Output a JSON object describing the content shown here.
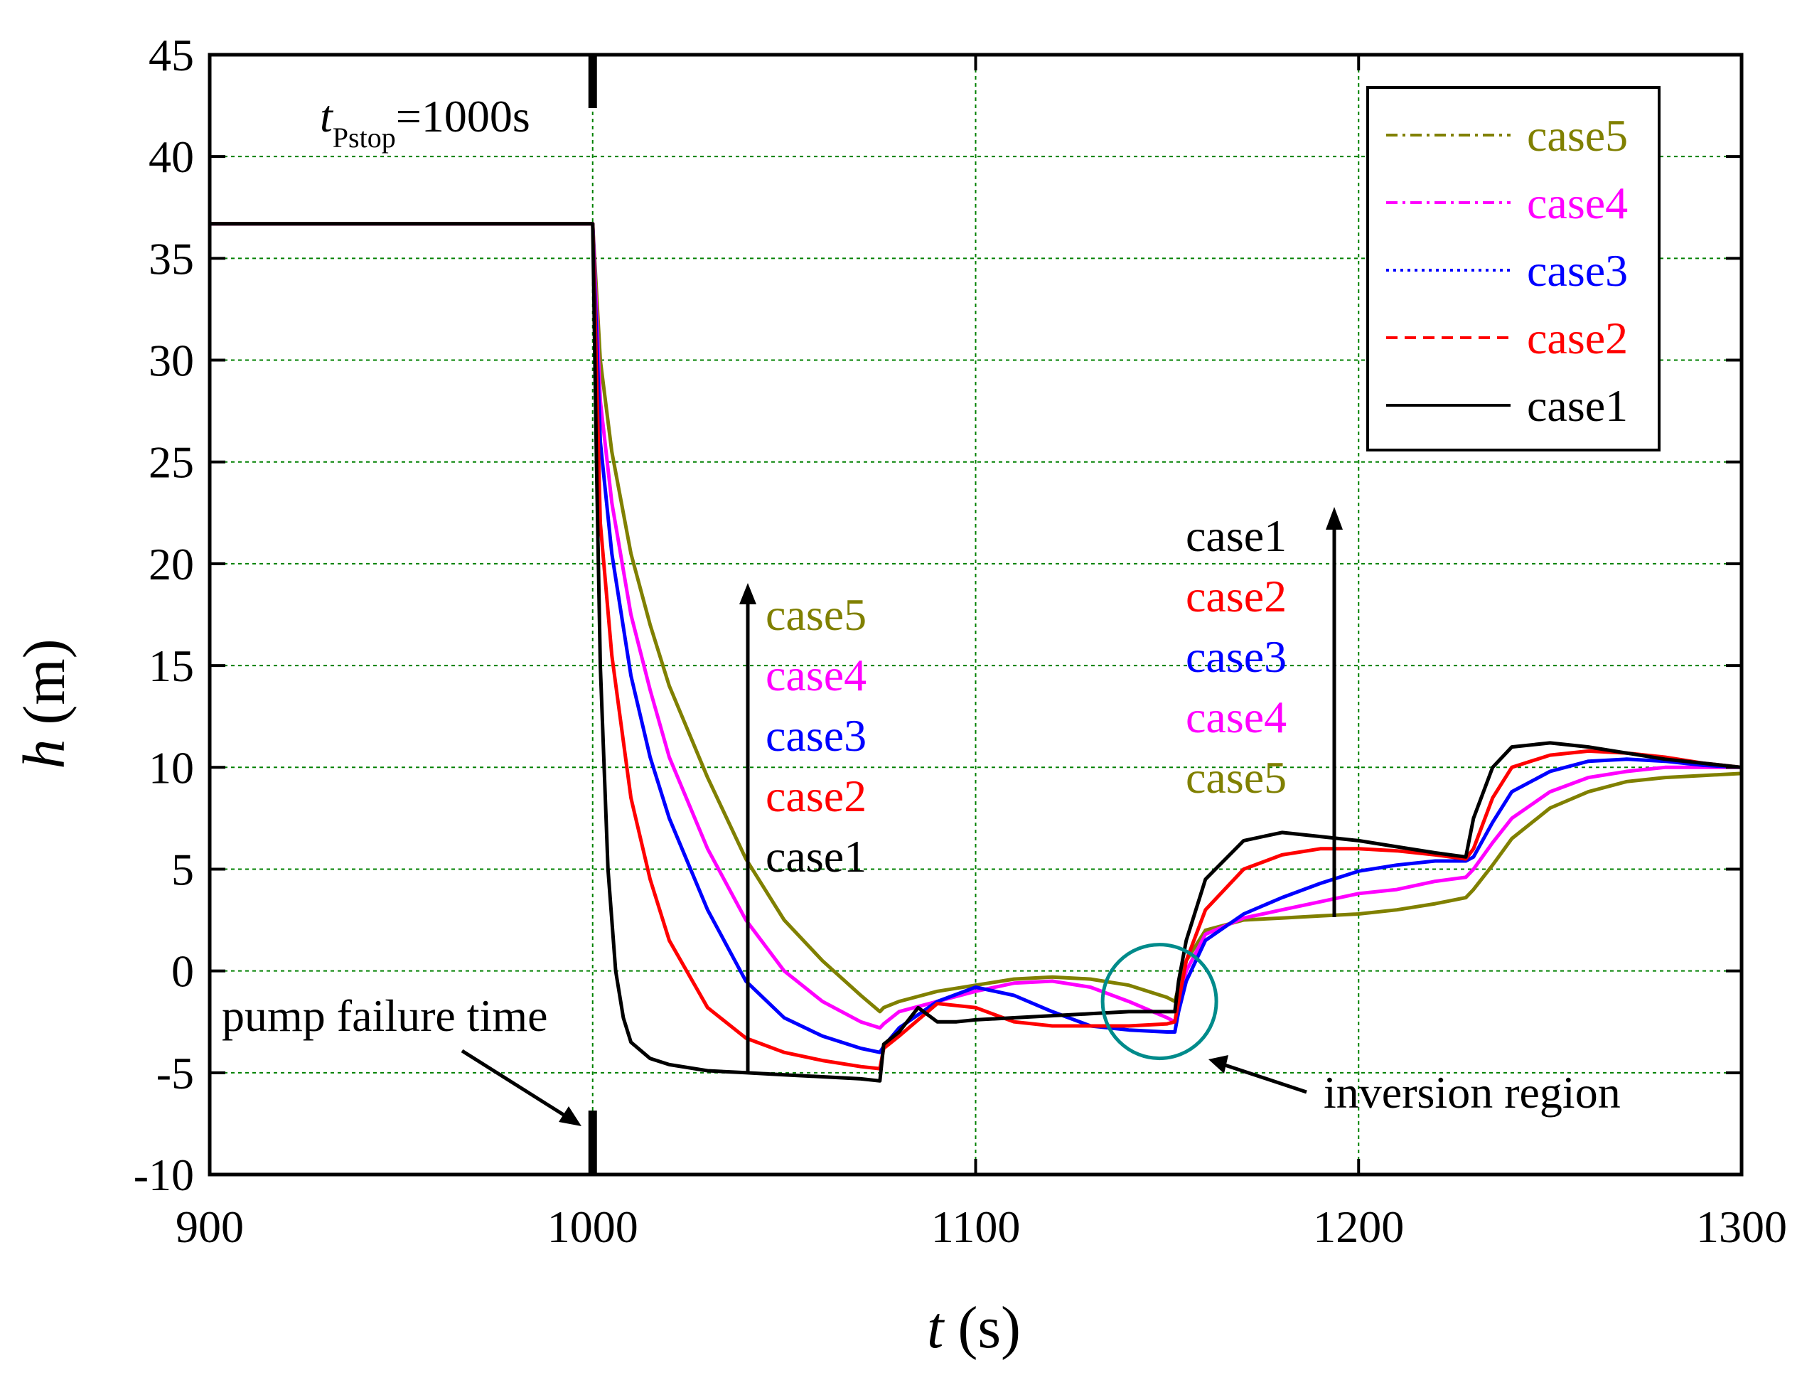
{
  "chart_data": {
    "type": "line",
    "title": "",
    "xlabel": {
      "var": "t",
      "unit": "(s)"
    },
    "ylabel": {
      "var": "h",
      "unit": "(m)"
    },
    "xlim": [
      900,
      1300
    ],
    "ylim": [
      -10,
      45
    ],
    "xticks": [
      900,
      1000,
      1100,
      1200,
      1300
    ],
    "xtick_labels": [
      "900",
      "1000",
      "1100",
      "1200",
      "1300"
    ],
    "yticks": [
      -10,
      -5,
      0,
      5,
      10,
      15,
      20,
      25,
      30,
      35,
      40,
      45
    ],
    "ytick_labels": [
      "-10",
      "-5",
      "0",
      "5",
      "10",
      "15",
      "20",
      "25",
      "30",
      "35",
      "40",
      "45"
    ],
    "grid": true,
    "legend_position": "top-right",
    "series": [
      {
        "name": "case5",
        "color": "#808000",
        "dash": "dashdot",
        "legend_order": 0,
        "x": [
          900,
          1000,
          1002,
          1005,
          1010,
          1015,
          1020,
          1030,
          1040,
          1050,
          1060,
          1070,
          1075,
          1076,
          1080,
          1090,
          1100,
          1110,
          1120,
          1130,
          1140,
          1150,
          1152,
          1153,
          1155,
          1160,
          1170,
          1180,
          1190,
          1200,
          1210,
          1220,
          1228,
          1230,
          1235,
          1240,
          1250,
          1260,
          1270,
          1280,
          1290,
          1300
        ],
        "y": [
          36.7,
          36.7,
          30.0,
          25.5,
          20.5,
          17.0,
          14.0,
          9.5,
          5.5,
          2.5,
          0.5,
          -1.2,
          -2.0,
          -1.8,
          -1.5,
          -1.0,
          -0.7,
          -0.4,
          -0.3,
          -0.4,
          -0.7,
          -1.3,
          -1.5,
          -0.8,
          0.5,
          2.0,
          2.5,
          2.6,
          2.7,
          2.8,
          3.0,
          3.3,
          3.6,
          4.0,
          5.2,
          6.5,
          8.0,
          8.8,
          9.3,
          9.5,
          9.6,
          9.7
        ]
      },
      {
        "name": "case4",
        "color": "#ff00ff",
        "dash": "dashdot",
        "legend_order": 1,
        "x": [
          900,
          1000,
          1002,
          1005,
          1010,
          1015,
          1020,
          1030,
          1040,
          1050,
          1060,
          1070,
          1075,
          1076,
          1080,
          1090,
          1100,
          1110,
          1120,
          1130,
          1140,
          1150,
          1152,
          1153,
          1155,
          1160,
          1170,
          1180,
          1190,
          1200,
          1210,
          1220,
          1228,
          1230,
          1235,
          1240,
          1250,
          1260,
          1270,
          1280,
          1290,
          1300
        ],
        "y": [
          36.7,
          36.7,
          28.0,
          23.0,
          17.5,
          13.8,
          10.5,
          6.0,
          2.5,
          0.0,
          -1.5,
          -2.5,
          -2.8,
          -2.6,
          -2.0,
          -1.5,
          -1.0,
          -0.6,
          -0.5,
          -0.8,
          -1.5,
          -2.3,
          -2.5,
          -1.5,
          0.0,
          1.8,
          2.6,
          3.0,
          3.4,
          3.8,
          4.0,
          4.4,
          4.6,
          5.0,
          6.3,
          7.5,
          8.8,
          9.5,
          9.8,
          10.0,
          10.0,
          10.0
        ]
      },
      {
        "name": "case3",
        "color": "#0000ff",
        "dash": "dotted",
        "legend_order": 2,
        "x": [
          900,
          1000,
          1002,
          1005,
          1010,
          1015,
          1020,
          1030,
          1040,
          1050,
          1060,
          1070,
          1075,
          1076,
          1080,
          1090,
          1100,
          1110,
          1120,
          1130,
          1140,
          1150,
          1152,
          1153,
          1155,
          1160,
          1170,
          1180,
          1190,
          1200,
          1210,
          1220,
          1228,
          1230,
          1235,
          1240,
          1250,
          1260,
          1270,
          1280,
          1290,
          1300
        ],
        "y": [
          36.7,
          36.7,
          26.0,
          20.5,
          14.5,
          10.5,
          7.5,
          3.0,
          -0.5,
          -2.3,
          -3.2,
          -3.8,
          -4.0,
          -3.7,
          -2.8,
          -1.5,
          -0.8,
          -1.2,
          -2.0,
          -2.7,
          -2.9,
          -3.0,
          -3.0,
          -2.0,
          -0.5,
          1.5,
          2.8,
          3.6,
          4.3,
          4.9,
          5.2,
          5.4,
          5.4,
          5.6,
          7.3,
          8.8,
          9.8,
          10.3,
          10.4,
          10.3,
          10.1,
          10.0
        ]
      },
      {
        "name": "case2",
        "color": "#ff0000",
        "dash": "dashed",
        "legend_order": 3,
        "x": [
          900,
          1000,
          1002,
          1005,
          1010,
          1015,
          1020,
          1030,
          1040,
          1050,
          1060,
          1070,
          1075,
          1076,
          1080,
          1090,
          1100,
          1110,
          1120,
          1130,
          1140,
          1150,
          1152,
          1153,
          1155,
          1160,
          1170,
          1180,
          1190,
          1200,
          1210,
          1220,
          1228,
          1230,
          1235,
          1240,
          1250,
          1260,
          1270,
          1280,
          1290,
          1300
        ],
        "y": [
          36.7,
          36.7,
          22.0,
          15.5,
          8.5,
          4.5,
          1.5,
          -1.8,
          -3.3,
          -4.0,
          -4.4,
          -4.7,
          -4.8,
          -3.8,
          -3.2,
          -1.6,
          -1.8,
          -2.5,
          -2.7,
          -2.7,
          -2.7,
          -2.6,
          -2.5,
          -1.5,
          0.5,
          3.0,
          5.0,
          5.7,
          6.0,
          6.0,
          5.9,
          5.7,
          5.5,
          6.0,
          8.5,
          10.0,
          10.6,
          10.8,
          10.7,
          10.5,
          10.2,
          10.0
        ]
      },
      {
        "name": "case1",
        "color": "#000000",
        "dash": "solid",
        "legend_order": 4,
        "x": [
          900,
          1000,
          1001,
          1002,
          1004,
          1006,
          1008,
          1010,
          1015,
          1020,
          1030,
          1040,
          1050,
          1060,
          1070,
          1075,
          1076,
          1080,
          1085,
          1090,
          1095,
          1100,
          1110,
          1120,
          1130,
          1140,
          1150,
          1152,
          1153,
          1155,
          1160,
          1170,
          1180,
          1190,
          1200,
          1210,
          1220,
          1228,
          1230,
          1235,
          1240,
          1250,
          1260,
          1270,
          1280,
          1290,
          1300
        ],
        "y": [
          36.7,
          36.7,
          25.0,
          15.0,
          5.0,
          0.0,
          -2.3,
          -3.5,
          -4.3,
          -4.6,
          -4.9,
          -5.0,
          -5.1,
          -5.2,
          -5.3,
          -5.4,
          -3.6,
          -3.0,
          -1.8,
          -2.5,
          -2.5,
          -2.4,
          -2.3,
          -2.2,
          -2.1,
          -2.0,
          -2.0,
          -2.0,
          -0.5,
          1.5,
          4.5,
          6.4,
          6.8,
          6.6,
          6.4,
          6.1,
          5.8,
          5.6,
          7.5,
          10.0,
          11.0,
          11.2,
          11.0,
          10.7,
          10.4,
          10.2,
          10.0
        ]
      }
    ],
    "annotations": {
      "t_var": "t",
      "t_sub": "Pstop",
      "t_value": "=1000s",
      "pump_failure": "pump failure time",
      "inversion": "inversion region",
      "arrow1_labels": [
        "case5",
        "case4",
        "case3",
        "case2",
        "case1"
      ],
      "arrow2_labels": [
        "case1",
        "case2",
        "case3",
        "case4",
        "case5"
      ]
    },
    "inversion_circle": {
      "x": 1148,
      "y": -1.5
    }
  }
}
